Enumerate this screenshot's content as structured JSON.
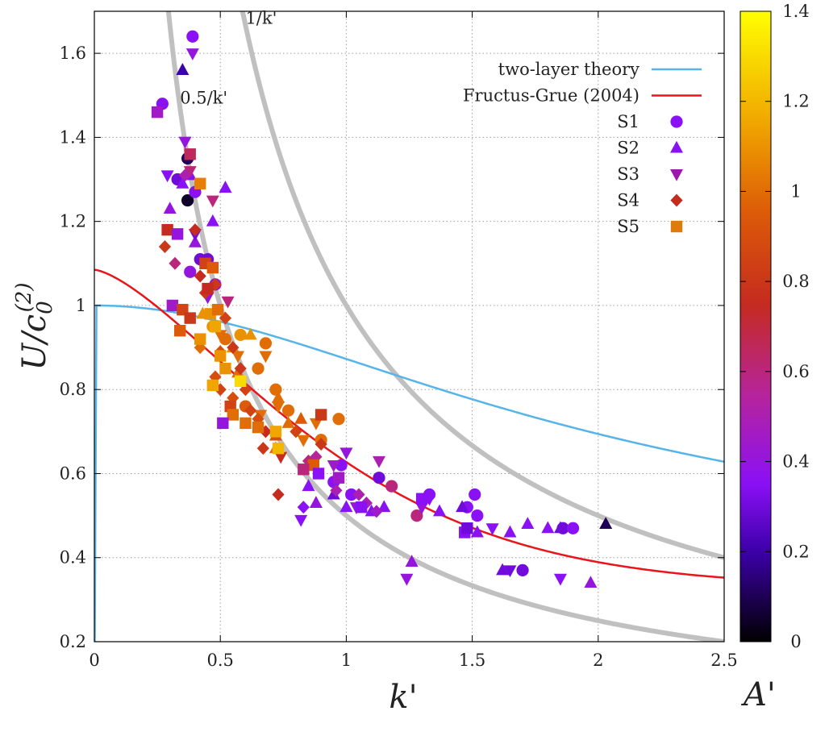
{
  "chart_data": {
    "type": "scatter",
    "title": "",
    "xlabel": "k'",
    "ylabel": "U/c0(2)",
    "ylabel_parts": {
      "base": "U/c",
      "sub": "0",
      "sup": "(2)"
    },
    "colorbar_label": "A'",
    "xlim": [
      0,
      2.5
    ],
    "ylim": [
      0.2,
      1.7
    ],
    "x_ticks": [
      0,
      0.5,
      1,
      1.5,
      2,
      2.5
    ],
    "x_tick_labels": [
      "0",
      "0.5",
      "1",
      "1.5",
      "2",
      "2.5"
    ],
    "y_ticks": [
      0.2,
      0.4,
      0.6,
      0.8,
      1.0,
      1.2,
      1.4,
      1.6
    ],
    "y_tick_labels": [
      "0.2",
      "0.4",
      "0.6",
      "0.8",
      "1",
      "1.2",
      "1.4",
      "1.6"
    ],
    "colorbar": {
      "range": [
        0,
        1.4
      ],
      "ticks": [
        0,
        0.2,
        0.4,
        0.6,
        0.8,
        1.0,
        1.2,
        1.4
      ],
      "tick_labels": [
        "0",
        "0.2",
        "0.4",
        "0.6",
        "0.8",
        "1",
        "1.2",
        "1.4"
      ],
      "stops": [
        {
          "v": 0.0,
          "color": "#000000"
        },
        {
          "v": 0.2,
          "color": "#3c00a8"
        },
        {
          "v": 0.35,
          "color": "#8a10f5"
        },
        {
          "v": 0.55,
          "color": "#b6249a"
        },
        {
          "v": 0.75,
          "color": "#c52b1f"
        },
        {
          "v": 0.95,
          "color": "#dc5a08"
        },
        {
          "v": 1.15,
          "color": "#f0a500"
        },
        {
          "v": 1.4,
          "color": "#ffff00"
        }
      ]
    },
    "grid": true,
    "legend_position": "top-right",
    "legend": [
      {
        "label": "two-layer theory",
        "kind": "line",
        "color": "#56b4e9"
      },
      {
        "label": "Fructus-Grue (2004)",
        "kind": "line",
        "color": "#e8151b"
      },
      {
        "label": "S1",
        "kind": "marker",
        "shape": "circle",
        "color": "#8a10f5"
      },
      {
        "label": "S2",
        "kind": "marker",
        "shape": "triangle-up",
        "color": "#8a10f5"
      },
      {
        "label": "S3",
        "kind": "marker",
        "shape": "triangle-down",
        "color": "#9a1aa8"
      },
      {
        "label": "S4",
        "kind": "marker",
        "shape": "diamond",
        "color": "#c52b1f"
      },
      {
        "label": "S5",
        "kind": "marker",
        "shape": "square",
        "color": "#e07a0c"
      }
    ],
    "reference_curves": [
      {
        "label": "1/k'",
        "formula": "1/k",
        "color": "#c0c0c0"
      },
      {
        "label": "0.5/k'",
        "formula": "0.5/k",
        "color": "#c0c0c0"
      }
    ],
    "series": [
      {
        "name": "S1",
        "shape": "circle",
        "points": [
          [
            0.39,
            1.64,
            0.35
          ],
          [
            0.27,
            1.48,
            0.35
          ],
          [
            0.33,
            1.3,
            0.3
          ],
          [
            0.37,
            1.35,
            0.1
          ],
          [
            0.37,
            1.25,
            0.05
          ],
          [
            0.4,
            1.27,
            0.35
          ],
          [
            0.42,
            1.11,
            0.3
          ],
          [
            0.45,
            1.11,
            0.3
          ],
          [
            0.48,
            1.05,
            0.4
          ],
          [
            0.38,
            1.08,
            0.4
          ],
          [
            0.47,
            0.95,
            1.1
          ],
          [
            0.52,
            0.92,
            1.0
          ],
          [
            0.58,
            0.93,
            1.1
          ],
          [
            0.68,
            0.91,
            1.0
          ],
          [
            0.65,
            0.85,
            1.0
          ],
          [
            0.72,
            0.8,
            1.0
          ],
          [
            0.77,
            0.75,
            1.0
          ],
          [
            0.6,
            0.76,
            0.95
          ],
          [
            0.97,
            0.73,
            1.0
          ],
          [
            0.9,
            0.68,
            1.0
          ],
          [
            0.98,
            0.62,
            0.35
          ],
          [
            0.95,
            0.58,
            0.35
          ],
          [
            1.02,
            0.55,
            0.35
          ],
          [
            1.13,
            0.59,
            0.3
          ],
          [
            1.18,
            0.57,
            0.6
          ],
          [
            1.28,
            0.5,
            0.6
          ],
          [
            1.51,
            0.55,
            0.35
          ],
          [
            1.52,
            0.5,
            0.35
          ],
          [
            1.48,
            0.52,
            0.35
          ],
          [
            1.7,
            0.37,
            0.3
          ],
          [
            1.86,
            0.47,
            0.3
          ],
          [
            1.9,
            0.47,
            0.35
          ],
          [
            1.33,
            0.55,
            0.35
          ]
        ]
      },
      {
        "name": "S2",
        "shape": "triangle-up",
        "points": [
          [
            0.35,
            1.56,
            0.2
          ],
          [
            0.35,
            1.29,
            0.35
          ],
          [
            0.3,
            1.23,
            0.4
          ],
          [
            0.47,
            1.2,
            0.35
          ],
          [
            0.38,
            1.31,
            0.35
          ],
          [
            0.52,
            1.28,
            0.35
          ],
          [
            0.4,
            1.15,
            0.4
          ],
          [
            0.43,
            0.98,
            1.1
          ],
          [
            0.55,
            0.9,
            1.1
          ],
          [
            0.62,
            0.93,
            1.1
          ],
          [
            0.57,
            0.84,
            1.0
          ],
          [
            0.72,
            0.69,
            0.9
          ],
          [
            0.73,
            0.78,
            1.0
          ],
          [
            0.77,
            0.72,
            1.0
          ],
          [
            0.82,
            0.73,
            0.95
          ],
          [
            0.72,
            0.66,
            1.0
          ],
          [
            0.85,
            0.57,
            0.35
          ],
          [
            0.95,
            0.55,
            0.3
          ],
          [
            1.0,
            0.52,
            0.35
          ],
          [
            1.1,
            0.51,
            0.35
          ],
          [
            1.15,
            0.52,
            0.35
          ],
          [
            1.37,
            0.51,
            0.35
          ],
          [
            1.46,
            0.52,
            0.3
          ],
          [
            1.52,
            0.46,
            0.35
          ],
          [
            1.62,
            0.37,
            0.3
          ],
          [
            1.65,
            0.46,
            0.35
          ],
          [
            1.72,
            0.48,
            0.35
          ],
          [
            1.8,
            0.47,
            0.35
          ],
          [
            1.85,
            0.47,
            0.3
          ],
          [
            1.97,
            0.34,
            0.4
          ],
          [
            2.03,
            0.48,
            0.1
          ],
          [
            1.26,
            0.39,
            0.4
          ],
          [
            0.88,
            0.53,
            0.4
          ]
        ]
      },
      {
        "name": "S3",
        "shape": "triangle-down",
        "points": [
          [
            0.39,
            1.6,
            0.4
          ],
          [
            0.29,
            1.31,
            0.35
          ],
          [
            0.36,
            1.39,
            0.4
          ],
          [
            0.38,
            1.32,
            0.6
          ],
          [
            0.47,
            1.25,
            0.6
          ],
          [
            0.4,
            1.17,
            0.3
          ],
          [
            0.45,
            1.02,
            0.4
          ],
          [
            0.5,
            0.93,
            1.0
          ],
          [
            0.53,
            1.01,
            0.6
          ],
          [
            0.57,
            0.88,
            1.0
          ],
          [
            0.68,
            0.88,
            1.0
          ],
          [
            0.73,
            0.76,
            1.0
          ],
          [
            0.66,
            0.74,
            1.0
          ],
          [
            0.83,
            0.68,
            1.0
          ],
          [
            0.88,
            0.72,
            1.0
          ],
          [
            0.95,
            0.62,
            0.45
          ],
          [
            1.0,
            0.65,
            0.4
          ],
          [
            0.82,
            0.49,
            0.35
          ],
          [
            1.04,
            0.52,
            0.4
          ],
          [
            1.13,
            0.63,
            0.5
          ],
          [
            1.24,
            0.35,
            0.4
          ],
          [
            1.3,
            0.52,
            0.4
          ],
          [
            1.33,
            0.54,
            0.35
          ],
          [
            1.58,
            0.47,
            0.35
          ],
          [
            1.85,
            0.35,
            0.35
          ],
          [
            1.65,
            0.37,
            0.3
          ],
          [
            0.74,
            0.64,
            0.75
          ]
        ]
      },
      {
        "name": "S4",
        "shape": "diamond",
        "points": [
          [
            0.36,
            1.31,
            0.5
          ],
          [
            0.4,
            1.18,
            0.75
          ],
          [
            0.28,
            1.14,
            0.8
          ],
          [
            0.32,
            1.1,
            0.6
          ],
          [
            0.42,
            1.07,
            0.75
          ],
          [
            0.44,
            1.03,
            0.8
          ],
          [
            0.48,
            1.05,
            0.8
          ],
          [
            0.52,
            0.97,
            0.85
          ],
          [
            0.55,
            0.9,
            0.8
          ],
          [
            0.58,
            0.85,
            0.8
          ],
          [
            0.6,
            0.8,
            0.85
          ],
          [
            0.5,
            0.8,
            0.85
          ],
          [
            0.55,
            0.78,
            0.9
          ],
          [
            0.48,
            0.83,
            0.9
          ],
          [
            0.62,
            0.75,
            0.85
          ],
          [
            0.68,
            0.7,
            0.75
          ],
          [
            0.67,
            0.66,
            0.8
          ],
          [
            0.8,
            0.7,
            0.85
          ],
          [
            0.9,
            0.67,
            0.8
          ],
          [
            0.85,
            0.63,
            0.6
          ],
          [
            0.88,
            0.64,
            0.55
          ],
          [
            0.96,
            0.56,
            0.5
          ],
          [
            1.05,
            0.55,
            0.5
          ],
          [
            1.08,
            0.53,
            0.5
          ],
          [
            1.12,
            0.51,
            0.45
          ],
          [
            0.83,
            0.52,
            0.35
          ],
          [
            0.73,
            0.55,
            0.75
          ],
          [
            0.65,
            0.73,
            0.9
          ],
          [
            0.5,
            0.89,
            0.9
          ],
          [
            0.42,
            0.9,
            1.0
          ]
        ]
      },
      {
        "name": "S5",
        "shape": "square",
        "points": [
          [
            0.25,
            1.46,
            0.45
          ],
          [
            0.38,
            1.36,
            0.65
          ],
          [
            0.42,
            1.29,
            1.05
          ],
          [
            0.29,
            1.18,
            0.75
          ],
          [
            0.33,
            1.17,
            0.4
          ],
          [
            0.44,
            1.1,
            0.85
          ],
          [
            0.47,
            1.09,
            0.95
          ],
          [
            0.45,
            1.04,
            0.75
          ],
          [
            0.31,
            1.0,
            0.45
          ],
          [
            0.35,
            0.99,
            0.85
          ],
          [
            0.38,
            0.97,
            0.8
          ],
          [
            0.34,
            0.94,
            0.95
          ],
          [
            0.46,
            0.98,
            1.1
          ],
          [
            0.48,
            0.95,
            1.15
          ],
          [
            0.42,
            0.92,
            1.1
          ],
          [
            0.5,
            0.88,
            1.1
          ],
          [
            0.52,
            0.85,
            1.1
          ],
          [
            0.58,
            0.82,
            1.3
          ],
          [
            0.47,
            0.81,
            1.15
          ],
          [
            0.54,
            0.76,
            0.85
          ],
          [
            0.55,
            0.74,
            1.0
          ],
          [
            0.51,
            0.72,
            0.4
          ],
          [
            0.6,
            0.72,
            1.0
          ],
          [
            0.65,
            0.71,
            1.0
          ],
          [
            0.72,
            0.7,
            1.15
          ],
          [
            0.73,
            0.66,
            1.2
          ],
          [
            0.9,
            0.74,
            0.8
          ],
          [
            0.87,
            0.62,
            0.95
          ],
          [
            0.83,
            0.61,
            0.6
          ],
          [
            0.89,
            0.6,
            0.35
          ],
          [
            0.97,
            0.59,
            0.45
          ],
          [
            1.06,
            0.52,
            0.35
          ],
          [
            1.3,
            0.54,
            0.35
          ],
          [
            1.47,
            0.46,
            0.35
          ],
          [
            1.48,
            0.47,
            0.3
          ],
          [
            0.49,
            0.99,
            1.0
          ]
        ]
      }
    ],
    "annotations": [
      {
        "text": "1/k'",
        "at_x": 0.6,
        "at_y": 1.67
      },
      {
        "text": "0.5/k'",
        "at_x": 0.34,
        "at_y": 1.48
      }
    ]
  }
}
